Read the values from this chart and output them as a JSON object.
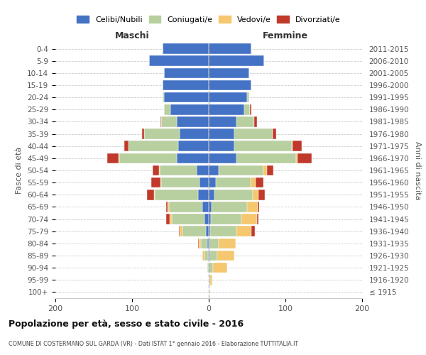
{
  "age_groups": [
    "100+",
    "95-99",
    "90-94",
    "85-89",
    "80-84",
    "75-79",
    "70-74",
    "65-69",
    "60-64",
    "55-59",
    "50-54",
    "45-49",
    "40-44",
    "35-39",
    "30-34",
    "25-29",
    "20-24",
    "15-19",
    "10-14",
    "5-9",
    "0-4"
  ],
  "birth_years": [
    "≤ 1915",
    "1916-1920",
    "1921-1925",
    "1926-1930",
    "1931-1935",
    "1936-1940",
    "1941-1945",
    "1946-1950",
    "1951-1955",
    "1956-1960",
    "1961-1965",
    "1966-1970",
    "1971-1975",
    "1976-1980",
    "1981-1985",
    "1986-1990",
    "1991-1995",
    "1996-2000",
    "2001-2005",
    "2006-2010",
    "2011-2015"
  ],
  "colors": {
    "celibe": "#4472c4",
    "coniugato": "#b8cfa0",
    "vedovo": "#f5c76e",
    "divorziato": "#c0392b"
  },
  "maschi": {
    "celibe": [
      0,
      0,
      0,
      1,
      2,
      4,
      6,
      8,
      14,
      12,
      16,
      42,
      40,
      38,
      42,
      50,
      58,
      60,
      58,
      78,
      60
    ],
    "coniugato": [
      0,
      0,
      2,
      5,
      8,
      30,
      42,
      44,
      56,
      50,
      48,
      75,
      65,
      46,
      20,
      8,
      2,
      0,
      0,
      0,
      0
    ],
    "vedovo": [
      0,
      0,
      0,
      2,
      3,
      4,
      3,
      2,
      1,
      1,
      1,
      1,
      0,
      0,
      0,
      0,
      0,
      0,
      0,
      0,
      0
    ],
    "divorziato": [
      0,
      0,
      0,
      0,
      1,
      1,
      5,
      2,
      10,
      12,
      8,
      14,
      5,
      3,
      1,
      0,
      0,
      0,
      0,
      0,
      0
    ]
  },
  "femmine": {
    "celibe": [
      0,
      0,
      0,
      1,
      1,
      2,
      3,
      4,
      7,
      9,
      13,
      36,
      33,
      33,
      36,
      46,
      50,
      56,
      53,
      72,
      56
    ],
    "coniugato": [
      0,
      2,
      6,
      10,
      12,
      34,
      40,
      46,
      50,
      46,
      58,
      78,
      75,
      50,
      23,
      8,
      3,
      0,
      0,
      0,
      0
    ],
    "vedovo": [
      1,
      3,
      18,
      22,
      22,
      20,
      20,
      14,
      8,
      6,
      5,
      2,
      1,
      0,
      0,
      0,
      0,
      0,
      0,
      0,
      0
    ],
    "divorziato": [
      0,
      0,
      0,
      0,
      0,
      4,
      2,
      2,
      8,
      10,
      8,
      18,
      12,
      5,
      4,
      2,
      0,
      0,
      0,
      0,
      0
    ]
  },
  "title": "Popolazione per età, sesso e stato civile - 2016",
  "subtitle": "COMUNE DI COSTERMANO SUL GARDA (VR) - Dati ISTAT 1° gennaio 2016 - Elaborazione TUTTITALIA.IT",
  "xlabel_left": "Maschi",
  "xlabel_right": "Femmine",
  "ylabel_left": "Fasce di età",
  "ylabel_right": "Anni di nascita",
  "xlim": 200,
  "legend_labels": [
    "Celibi/Nubili",
    "Coniugati/e",
    "Vedovi/e",
    "Divorziati/e"
  ]
}
